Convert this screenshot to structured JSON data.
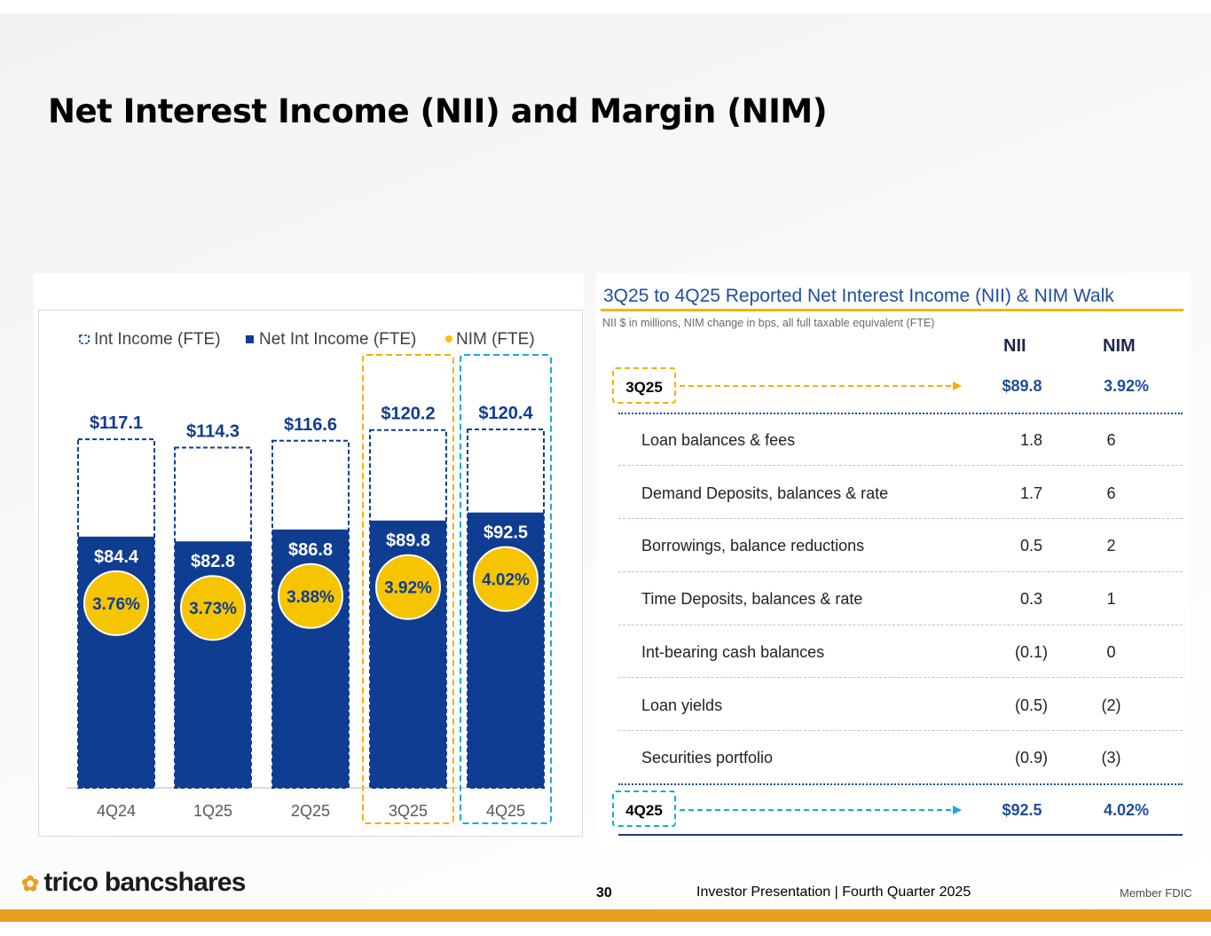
{
  "page": {
    "title": "Net Interest Income (NII) and Margin (NIM)",
    "page_number": "30",
    "deck_label": "Investor Presentation  |  Fourth Quarter 2025",
    "member": "Member FDIC",
    "logo_text": "trico bancshares"
  },
  "colors": {
    "navy": "#0f3d91",
    "gold": "#f6c400",
    "orange_dash": "#f2b100",
    "blue_dash": "#1aa8dc",
    "accent_bar": "#e8a020"
  },
  "chart_data": {
    "type": "bar",
    "title": "",
    "legend": [
      "Int Income (FTE)",
      "Net Int Income (FTE)",
      "NIM (FTE)"
    ],
    "legend_position": "top",
    "categories": [
      "4Q24",
      "1Q25",
      "2Q25",
      "3Q25",
      "4Q25"
    ],
    "series": [
      {
        "name": "Int Income (FTE)",
        "values": [
          117.1,
          114.3,
          116.6,
          120.2,
          120.4
        ],
        "labels": [
          "$117.1",
          "$114.3",
          "$116.6",
          "$120.2",
          "$120.4"
        ]
      },
      {
        "name": "Net Int Income (FTE)",
        "values": [
          84.4,
          82.8,
          86.8,
          89.8,
          92.5
        ],
        "labels": [
          "$84.4",
          "$82.8",
          "$86.8",
          "$89.8",
          "$92.5"
        ]
      },
      {
        "name": "NIM (FTE)",
        "values": [
          3.76,
          3.73,
          3.88,
          3.92,
          4.02
        ],
        "labels": [
          "3.76%",
          "3.73%",
          "3.88%",
          "3.92%",
          "4.02%"
        ]
      }
    ],
    "ylim": [
      0,
      130
    ],
    "grid": false,
    "highlight": {
      "3Q25": "orange",
      "4Q25": "blue"
    }
  },
  "walk": {
    "title": "3Q25 to 4Q25 Reported Net Interest Income (NII) & NIM Walk",
    "subtitle": "NII $ in millions, NIM change in bps, all full taxable equivalent (FTE)",
    "col_nii": "NII",
    "col_nim": "NIM",
    "start": {
      "label": "3Q25",
      "nii": "$89.8",
      "nim": "3.92%"
    },
    "rows": [
      {
        "label": "Loan balances & fees",
        "nii": "1.8",
        "nim": "6"
      },
      {
        "label": "Demand Deposits, balances & rate",
        "nii": "1.7",
        "nim": "6"
      },
      {
        "label": "Borrowings, balance reductions",
        "nii": "0.5",
        "nim": "2"
      },
      {
        "label": "Time Deposits, balances & rate",
        "nii": "0.3",
        "nim": "1"
      },
      {
        "label": "Int-bearing cash balances",
        "nii": "(0.1)",
        "nim": "0"
      },
      {
        "label": "Loan yields",
        "nii": "(0.5)",
        "nim": "(2)"
      },
      {
        "label": "Securities portfolio",
        "nii": "(0.9)",
        "nim": "(3)"
      }
    ],
    "end": {
      "label": "4Q25",
      "nii": "$92.5",
      "nim": "4.02%"
    }
  }
}
